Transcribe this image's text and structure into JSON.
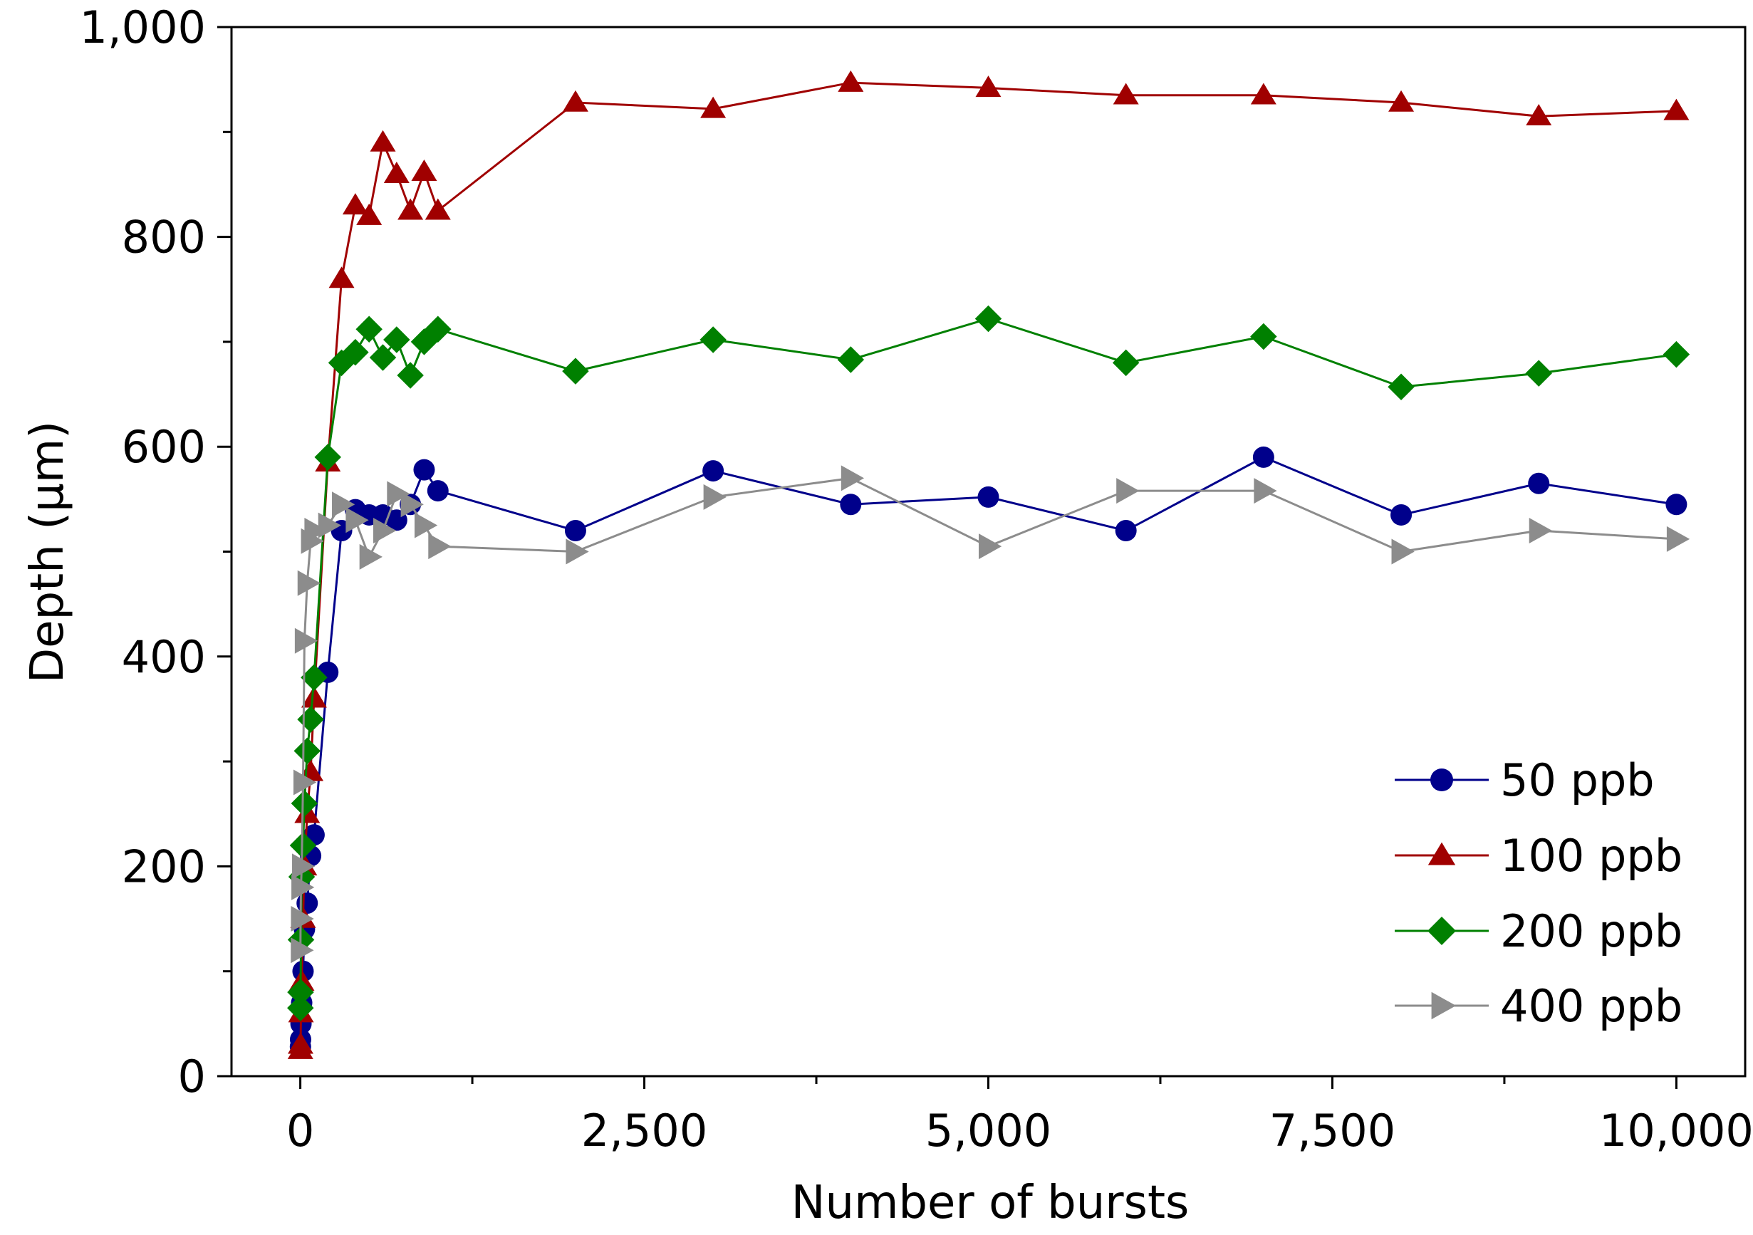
{
  "chart_data": {
    "type": "line",
    "title": "",
    "xlabel": "Number of bursts",
    "ylabel": "Depth (µm)",
    "xlim": [
      -500,
      10500
    ],
    "ylim": [
      0,
      1000
    ],
    "x_ticks": [
      0,
      2500,
      5000,
      7500,
      10000
    ],
    "x_tick_labels": [
      "0",
      "2,500",
      "5,000",
      "7,500",
      "10,000"
    ],
    "y_ticks": [
      0,
      200,
      400,
      600,
      800,
      1000
    ],
    "y_tick_labels": [
      "0",
      "200",
      "400",
      "600",
      "800",
      "1,000"
    ],
    "grid": false,
    "legend_position": "bottom-right",
    "series": [
      {
        "name": "50 ppb",
        "color": "#00008B",
        "marker": "circle",
        "x": [
          1,
          2,
          5,
          10,
          20,
          30,
          50,
          75,
          100,
          200,
          300,
          400,
          500,
          600,
          700,
          800,
          900,
          1000,
          2000,
          3000,
          4000,
          5000,
          6000,
          7000,
          8000,
          9000,
          10000
        ],
        "y": [
          28,
          35,
          50,
          70,
          100,
          140,
          165,
          210,
          230,
          385,
          520,
          540,
          535,
          535,
          530,
          545,
          578,
          558,
          520,
          577,
          545,
          552,
          520,
          590,
          535,
          565,
          545
        ]
      },
      {
        "name": "100 ppb",
        "color": "#A00000",
        "marker": "triangle-up",
        "x": [
          1,
          2,
          5,
          10,
          20,
          30,
          50,
          75,
          100,
          200,
          300,
          400,
          500,
          600,
          700,
          800,
          900,
          1000,
          2000,
          3000,
          4000,
          5000,
          6000,
          7000,
          8000,
          9000,
          10000
        ],
        "y": [
          25,
          30,
          60,
          90,
          150,
          200,
          250,
          290,
          360,
          585,
          760,
          830,
          820,
          890,
          860,
          825,
          862,
          825,
          928,
          922,
          947,
          942,
          935,
          935,
          928,
          915,
          920
        ]
      },
      {
        "name": "200 ppb",
        "color": "#008000",
        "marker": "diamond",
        "x": [
          1,
          2,
          5,
          10,
          20,
          30,
          50,
          75,
          100,
          200,
          300,
          400,
          500,
          600,
          700,
          800,
          900,
          1000,
          2000,
          3000,
          4000,
          5000,
          6000,
          7000,
          8000,
          9000,
          10000
        ],
        "y": [
          65,
          80,
          130,
          190,
          220,
          260,
          310,
          340,
          380,
          590,
          680,
          690,
          712,
          685,
          702,
          668,
          700,
          712,
          672,
          702,
          683,
          722,
          680,
          705,
          657,
          670,
          688
        ]
      },
      {
        "name": "400 ppb",
        "color": "#8C8C8C",
        "marker": "triangle-right",
        "x": [
          1,
          2,
          5,
          10,
          20,
          30,
          50,
          75,
          100,
          200,
          300,
          400,
          500,
          600,
          700,
          800,
          900,
          1000,
          2000,
          3000,
          4000,
          5000,
          6000,
          7000,
          8000,
          9000,
          10000
        ],
        "y": [
          120,
          150,
          180,
          200,
          280,
          415,
          470,
          510,
          520,
          525,
          545,
          530,
          495,
          520,
          555,
          545,
          525,
          505,
          500,
          552,
          570,
          505,
          558,
          558,
          500,
          520,
          512
        ]
      }
    ]
  }
}
